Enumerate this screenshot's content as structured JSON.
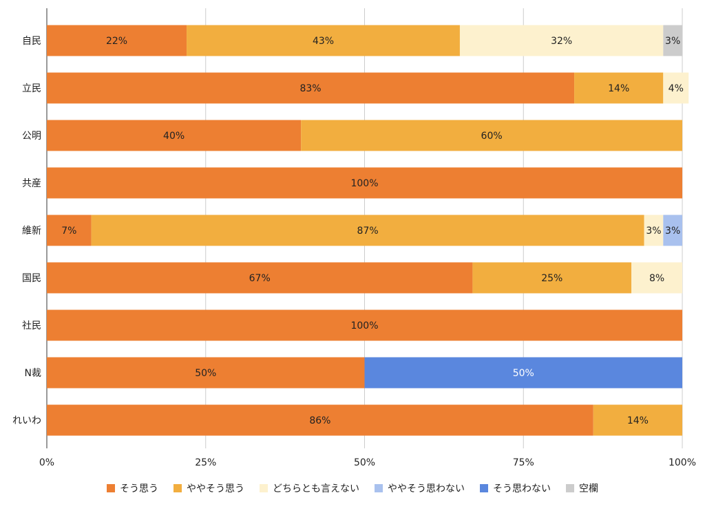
{
  "chart_data": {
    "type": "bar",
    "orientation": "horizontal",
    "stacked": true,
    "categories": [
      "自民",
      "立民",
      "公明",
      "共産",
      "維新",
      "国民",
      "社民",
      "N裁",
      "れいわ"
    ],
    "series": [
      {
        "name": "そう思う",
        "color": "#ED7F32",
        "values": [
          22,
          83,
          40,
          100,
          7,
          67,
          100,
          50,
          86
        ]
      },
      {
        "name": "ややそう思う",
        "color": "#F2AE3F",
        "values": [
          43,
          14,
          60,
          0,
          87,
          25,
          0,
          0,
          14
        ]
      },
      {
        "name": "どちらとも言えない",
        "color": "#FDF1CE",
        "values": [
          32,
          4,
          0,
          0,
          3,
          8,
          0,
          0,
          0
        ]
      },
      {
        "name": "ややそう思わない",
        "color": "#A9C1EE",
        "values": [
          0,
          0,
          0,
          0,
          3,
          0,
          0,
          0,
          0
        ]
      },
      {
        "name": "そう思わない",
        "color": "#5A87DE",
        "values": [
          0,
          0,
          0,
          0,
          0,
          0,
          0,
          50,
          0
        ]
      },
      {
        "name": "空欄",
        "color": "#CCCCCC",
        "values": [
          3,
          0,
          0,
          0,
          0,
          0,
          0,
          0,
          0
        ]
      }
    ],
    "xlim": [
      0,
      100
    ],
    "x_ticks": [
      "0%",
      "25%",
      "50%",
      "75%",
      "100%"
    ],
    "grid": "vertical",
    "legend_position": "bottom",
    "data_labels": "percent",
    "label_color_on_dark": "#FFFFFF",
    "label_color_default": "#222222"
  }
}
